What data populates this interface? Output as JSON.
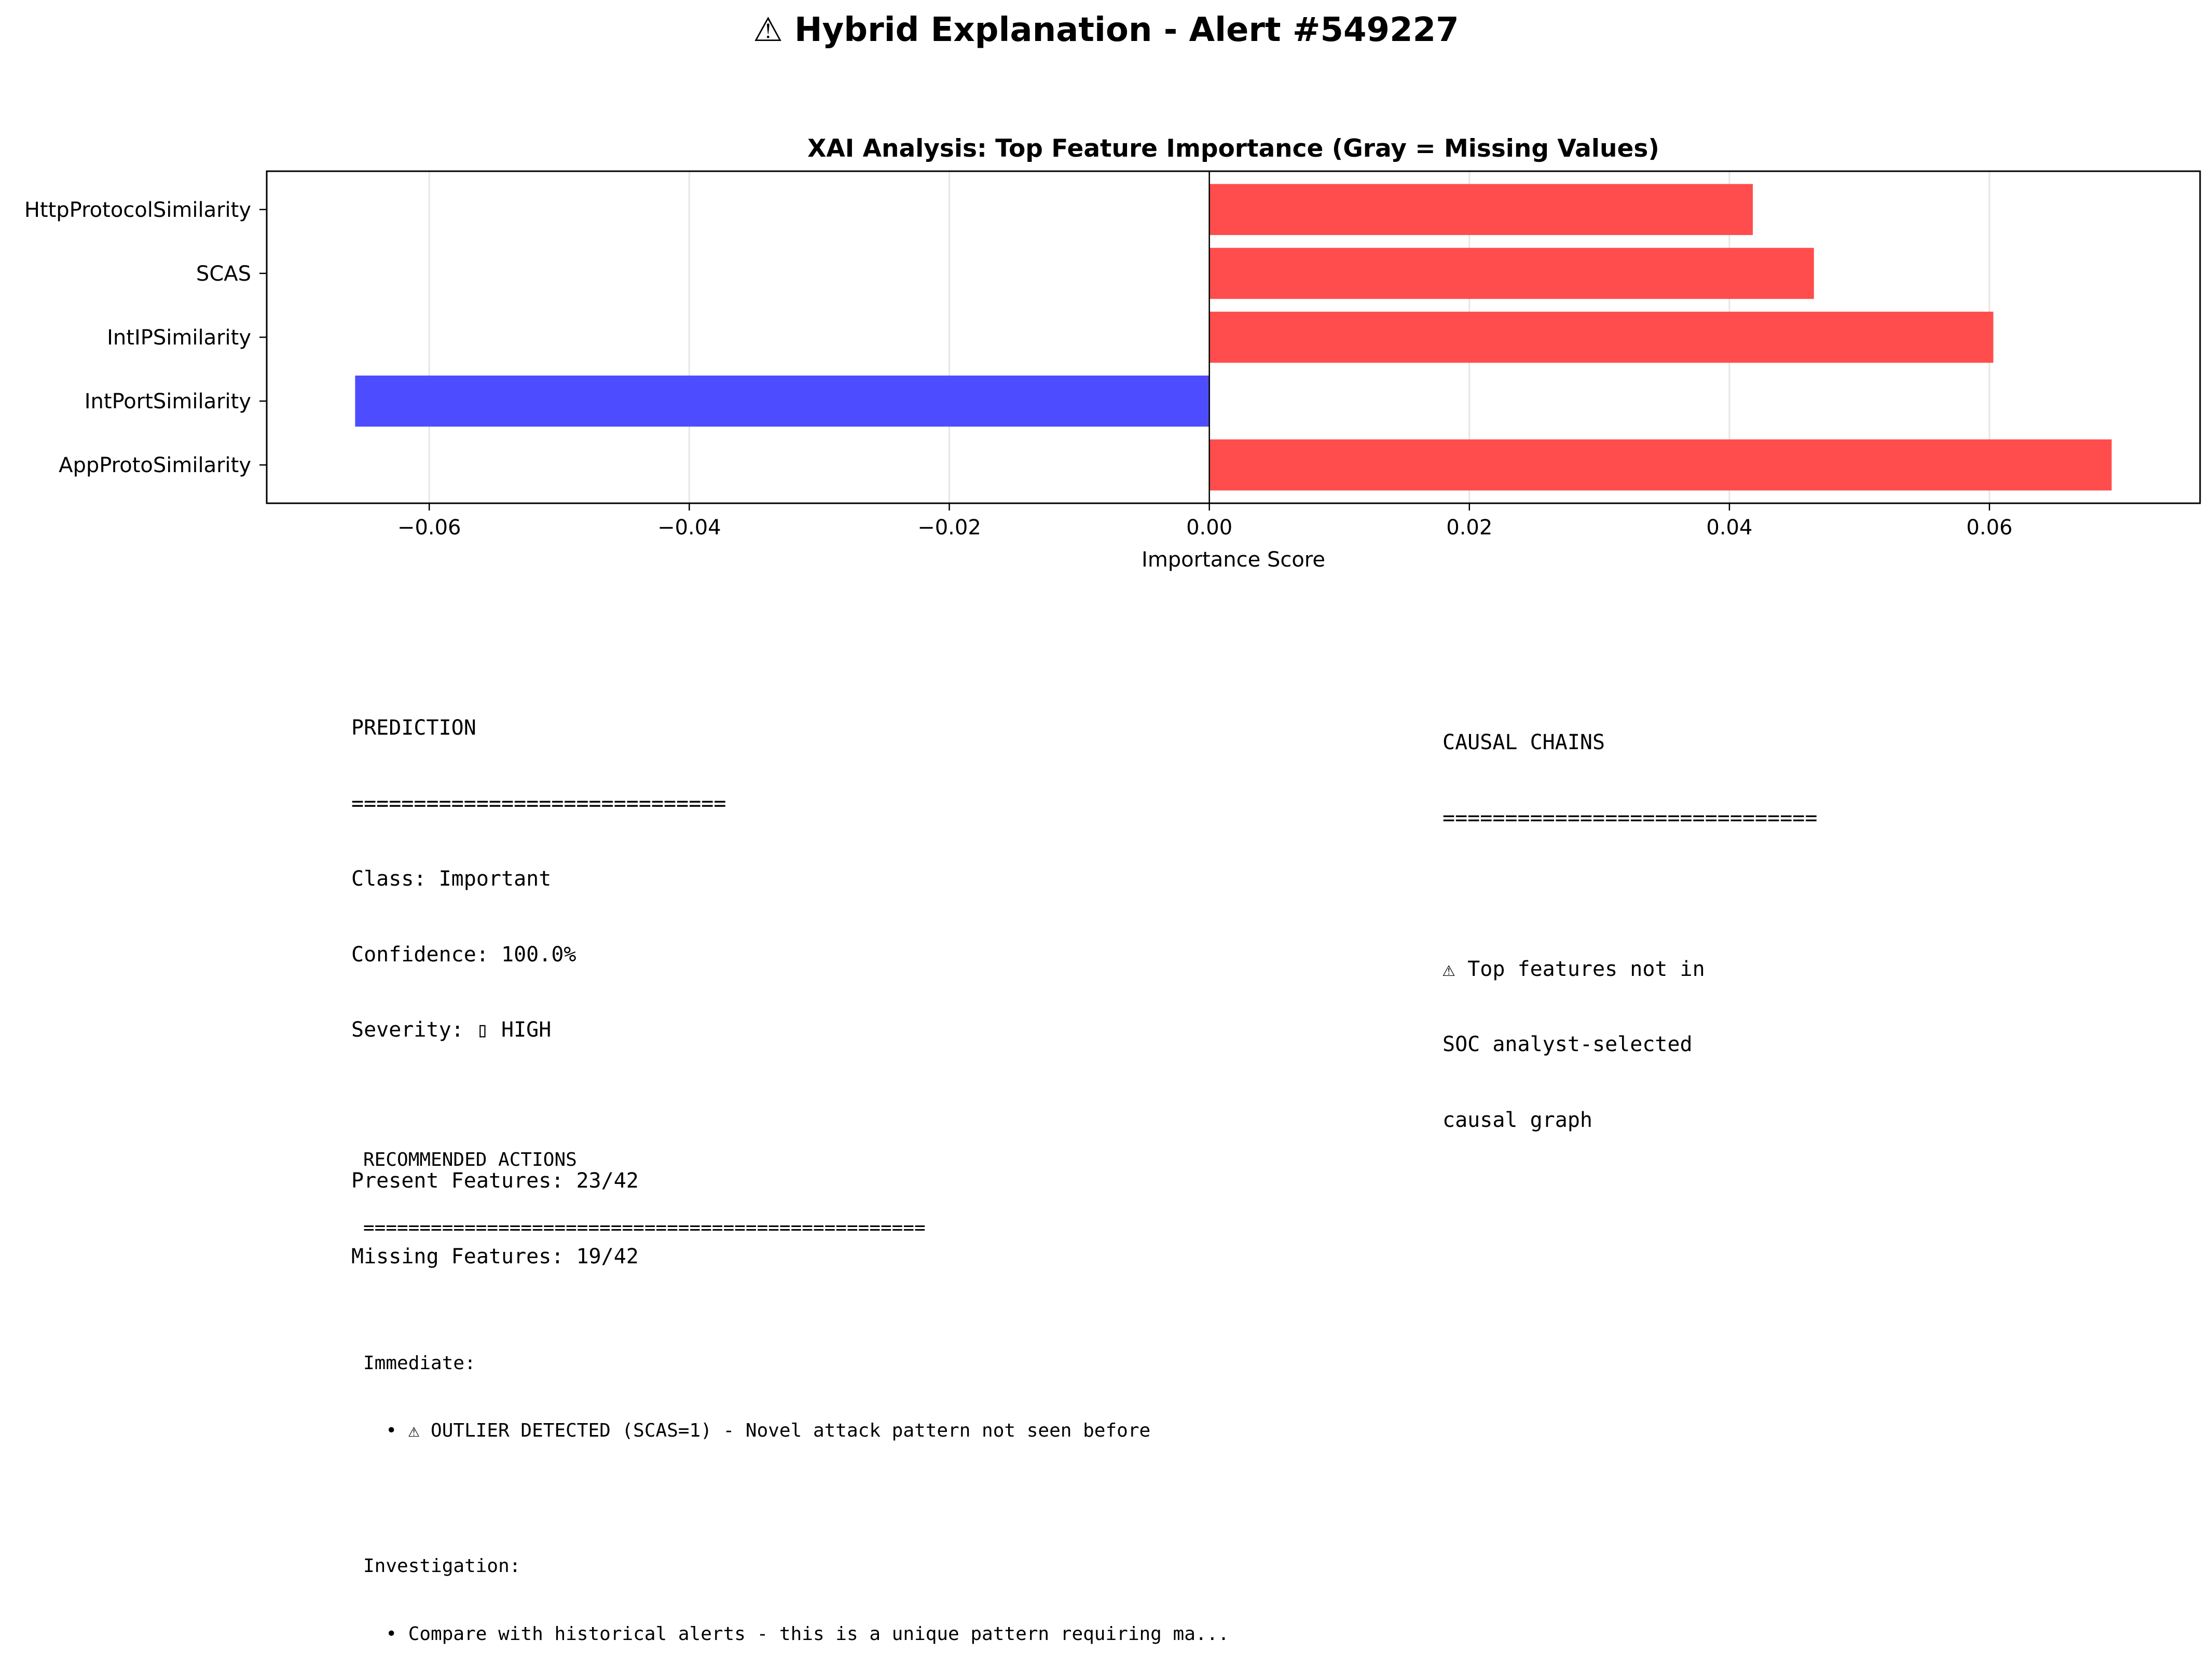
{
  "figure_title": "⚠ Hybrid Explanation - Alert #549227",
  "chart_data": {
    "type": "bar",
    "orientation": "horizontal",
    "title": "XAI Analysis: Top Feature Importance (Gray = Missing Values)",
    "xlabel": "Importance Score",
    "ylabel": "",
    "xlim": [
      -0.0725,
      0.0762
    ],
    "xticks": [
      -0.06,
      -0.04,
      -0.02,
      0.0,
      0.02,
      0.04,
      0.06
    ],
    "xtick_labels": [
      "−0.06",
      "−0.04",
      "−0.02",
      "0.00",
      "0.02",
      "0.04",
      "0.06"
    ],
    "grid": "x",
    "categories": [
      "AppProtoSimilarity",
      "IntPortSimilarity",
      "IntIPSimilarity",
      "SCAS",
      "HttpProtocolSimilarity"
    ],
    "values": [
      0.0694,
      -0.0657,
      0.0603,
      0.0465,
      0.0418
    ],
    "colors": [
      "#ff4d4d",
      "#4d4dff",
      "#ff4d4d",
      "#ff4d4d",
      "#ff4d4d"
    ]
  },
  "prediction": {
    "heading": "PREDICTION",
    "rule": "==============================",
    "class_line": "Class: Important",
    "confidence_line": "Confidence: 100.0%",
    "severity_line": "Severity: ▯ HIGH",
    "present_line": "Present Features: 23/42",
    "missing_line": "Missing Features: 19/42"
  },
  "causal": {
    "heading": "CAUSAL CHAINS",
    "rule": "==============================",
    "line1": "⚠ Top features not in",
    "line2": "SOC analyst-selected",
    "line3": "causal graph"
  },
  "actions": {
    "heading": "RECOMMENDED ACTIONS",
    "rule": "==================================================",
    "immediate_label": "Immediate:",
    "immediate_item": "  • ⚠ OUTLIER DETECTED (SCAS=1) - Novel attack pattern not seen before",
    "investigation_label": "Investigation:",
    "investigation_item": "  • Compare with historical alerts - this is a unique pattern requiring ma..."
  }
}
